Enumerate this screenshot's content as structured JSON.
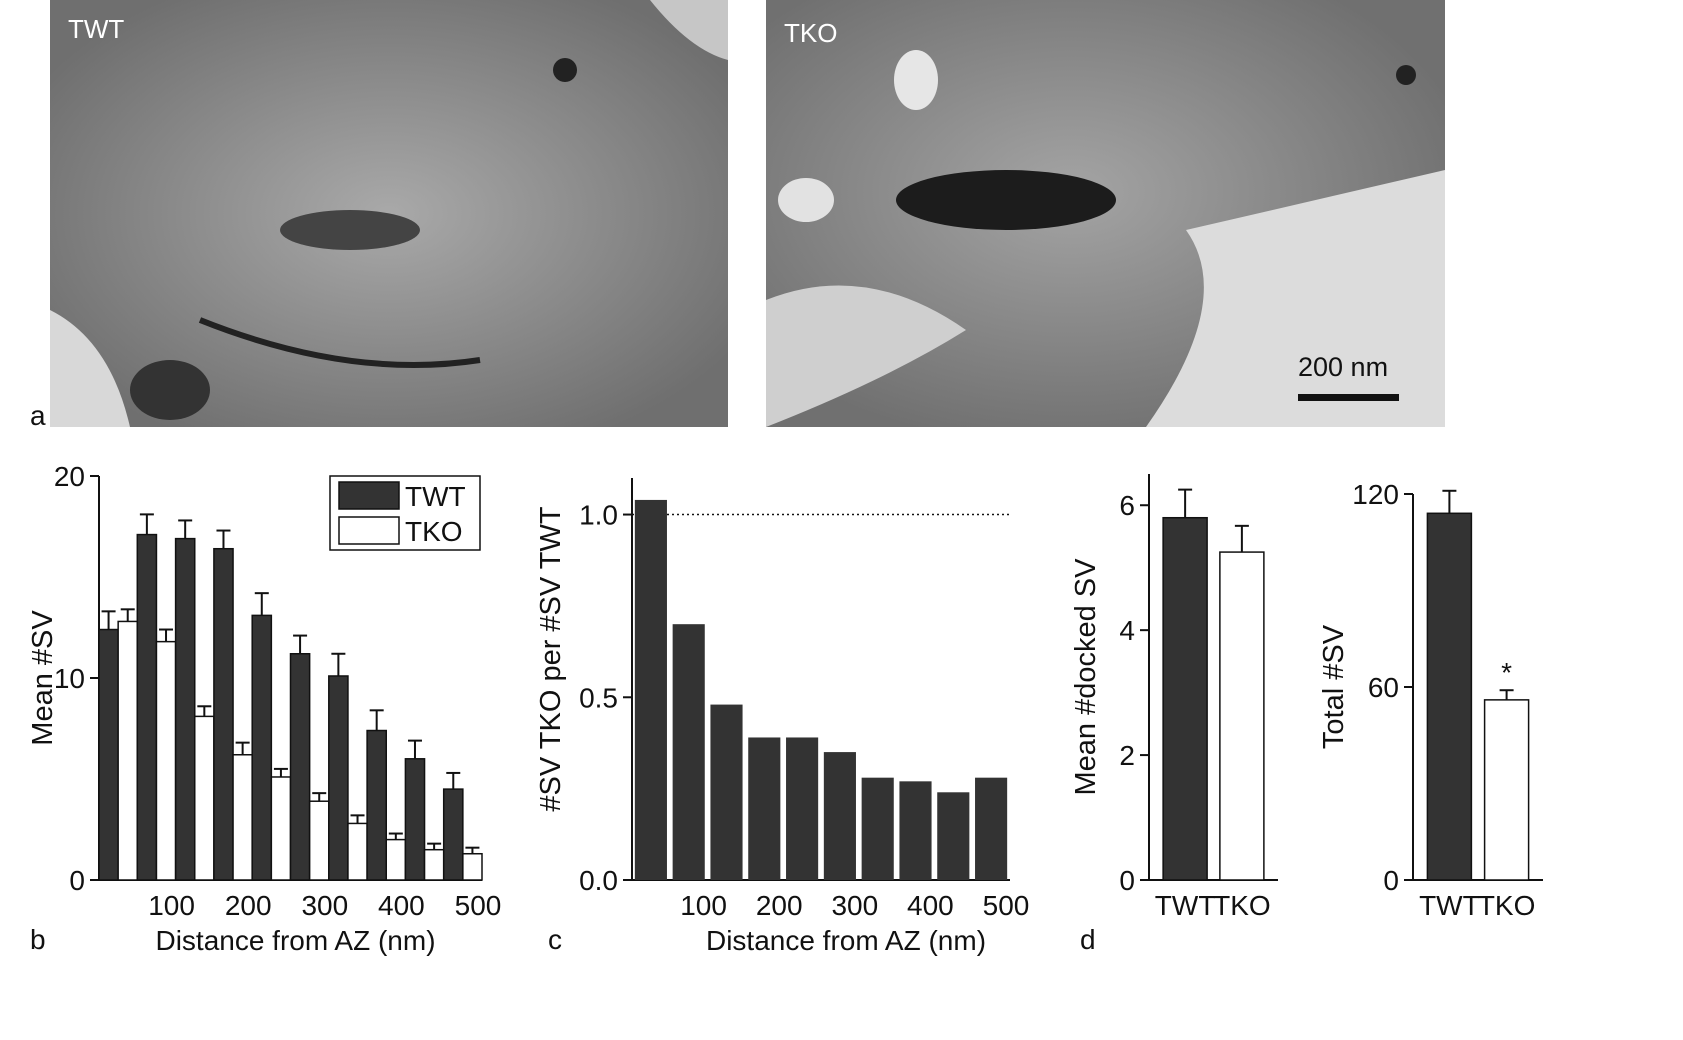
{
  "panel_a": {
    "letter": "a",
    "left_label": "TWT",
    "right_label": "TKO",
    "scale_bar": "200 nm"
  },
  "chart_data": [
    {
      "panel": "b",
      "type": "bar",
      "xlabel": "Distance from AZ (nm)",
      "ylabel": "Mean #SV",
      "ylim": [
        0,
        20
      ],
      "yticks": [
        0,
        10,
        20
      ],
      "xticks": [
        100,
        200,
        300,
        400,
        500
      ],
      "legend": "top-right",
      "categories": [
        50,
        100,
        150,
        200,
        250,
        300,
        350,
        400,
        450,
        500
      ],
      "series": [
        {
          "name": "TWT",
          "color": "#333333",
          "values": [
            12.4,
            17.1,
            16.9,
            16.4,
            13.1,
            11.2,
            10.1,
            7.4,
            6.0,
            4.5
          ],
          "errors": [
            0.9,
            1.0,
            0.9,
            0.9,
            1.1,
            0.9,
            1.1,
            1.0,
            0.9,
            0.8
          ]
        },
        {
          "name": "TKO",
          "color": "#ffffff",
          "values": [
            12.8,
            11.8,
            8.1,
            6.2,
            5.1,
            3.9,
            2.8,
            2.0,
            1.5,
            1.3
          ],
          "errors": [
            0.6,
            0.6,
            0.5,
            0.6,
            0.4,
            0.4,
            0.4,
            0.3,
            0.3,
            0.3
          ]
        }
      ]
    },
    {
      "panel": "c",
      "type": "bar",
      "xlabel": "Distance from AZ (nm)",
      "ylabel": "#SV TKO per #SV TWT",
      "ylim": [
        0,
        1.1
      ],
      "yticks": [
        "0.0",
        "0.5",
        "1.0"
      ],
      "xticks": [
        100,
        200,
        300,
        400,
        500
      ],
      "reference_line": 1.0,
      "categories": [
        50,
        100,
        150,
        200,
        250,
        300,
        350,
        400,
        450,
        500
      ],
      "values": [
        1.04,
        0.7,
        0.48,
        0.39,
        0.39,
        0.35,
        0.28,
        0.27,
        0.24,
        0.28
      ]
    },
    {
      "panel": "d",
      "type": "bar",
      "ylabel": "Mean #docked SV",
      "ylim": [
        0,
        6.5
      ],
      "yticks": [
        0,
        2,
        4,
        6
      ],
      "categories": [
        "TWT",
        "TKO"
      ],
      "values": [
        5.8,
        5.25
      ],
      "errors": [
        0.45,
        0.42
      ],
      "colors": [
        "#333333",
        "#ffffff"
      ]
    },
    {
      "panel": "d",
      "type": "bar",
      "ylabel": "Total #SV",
      "ylim": [
        0,
        120
      ],
      "yticks": [
        0,
        60,
        120
      ],
      "categories": [
        "TWT",
        "TKO"
      ],
      "values": [
        114,
        56
      ],
      "errors": [
        7,
        3
      ],
      "colors": [
        "#333333",
        "#ffffff"
      ],
      "annotations": [
        {
          "category": "TKO",
          "text": "*"
        }
      ]
    }
  ],
  "panel_letters": {
    "b": "b",
    "c": "c",
    "d": "d"
  }
}
